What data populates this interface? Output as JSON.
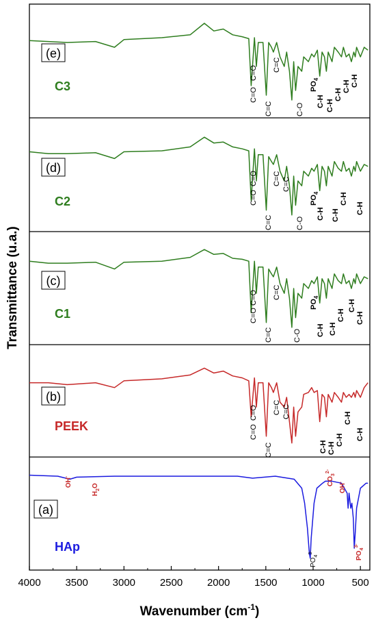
{
  "chart_data": {
    "type": "line",
    "xlabel": "Wavenumber (cm",
    "xlabel_sup": "-1",
    "xlabel_end": ")",
    "ylabel": "Transmittance (u.a.)",
    "xlim": [
      4000,
      400
    ],
    "x_reversed": true,
    "x_ticks": [
      "4000",
      "3500",
      "3000",
      "2500",
      "2000",
      "1500",
      "1000",
      "500"
    ],
    "x_tick_values": [
      4000,
      3500,
      3000,
      2500,
      2000,
      1500,
      1000,
      500
    ],
    "panels": [
      {
        "letter": "(e)",
        "name": "C3",
        "color": "#2e7d1e",
        "series": [
          [
            4000,
            0.28
          ],
          [
            3800,
            0.29
          ],
          [
            3600,
            0.3
          ],
          [
            3300,
            0.29
          ],
          [
            3100,
            0.35
          ],
          [
            3000,
            0.27
          ],
          [
            2600,
            0.25
          ],
          [
            2300,
            0.22
          ],
          [
            2150,
            0.1
          ],
          [
            2050,
            0.18
          ],
          [
            1950,
            0.16
          ],
          [
            1850,
            0.22
          ],
          [
            1750,
            0.24
          ],
          [
            1680,
            0.26
          ],
          [
            1655,
            0.75
          ],
          [
            1620,
            0.25
          ],
          [
            1600,
            0.55
          ],
          [
            1580,
            0.3
          ],
          [
            1530,
            0.3
          ],
          [
            1495,
            0.85
          ],
          [
            1470,
            0.3
          ],
          [
            1440,
            0.35
          ],
          [
            1420,
            0.4
          ],
          [
            1385,
            0.3
          ],
          [
            1350,
            0.45
          ],
          [
            1305,
            0.55
          ],
          [
            1280,
            0.4
          ],
          [
            1250,
            0.6
          ],
          [
            1225,
            0.9
          ],
          [
            1205,
            0.5
          ],
          [
            1185,
            0.8
          ],
          [
            1160,
            0.55
          ],
          [
            1120,
            0.6
          ],
          [
            1100,
            0.45
          ],
          [
            1050,
            0.5
          ],
          [
            1015,
            0.42
          ],
          [
            990,
            0.45
          ],
          [
            955,
            0.38
          ],
          [
            930,
            0.65
          ],
          [
            905,
            0.4
          ],
          [
            880,
            0.45
          ],
          [
            860,
            0.6
          ],
          [
            840,
            0.4
          ],
          [
            800,
            0.5
          ],
          [
            775,
            0.35
          ],
          [
            735,
            0.4
          ],
          [
            700,
            0.45
          ],
          [
            680,
            0.35
          ],
          [
            650,
            0.45
          ],
          [
            620,
            0.42
          ],
          [
            595,
            0.5
          ],
          [
            570,
            0.4
          ],
          [
            555,
            0.45
          ],
          [
            540,
            0.35
          ],
          [
            500,
            0.45
          ],
          [
            460,
            0.35
          ],
          [
            420,
            0.38
          ]
        ],
        "labels": [
          "C=O",
          "C=O",
          "C=C",
          "C=C",
          "C-O",
          "PO",
          "C-H",
          "C-H",
          "C-H",
          "C-H",
          "C-H"
        ]
      },
      {
        "letter": "(d)",
        "name": "C2",
        "color": "#2e7d1e",
        "series": [
          [
            4000,
            0.25
          ],
          [
            3800,
            0.27
          ],
          [
            3600,
            0.27
          ],
          [
            3300,
            0.26
          ],
          [
            3100,
            0.32
          ],
          [
            3000,
            0.25
          ],
          [
            2600,
            0.24
          ],
          [
            2300,
            0.2
          ],
          [
            2150,
            0.1
          ],
          [
            2050,
            0.16
          ],
          [
            1950,
            0.15
          ],
          [
            1850,
            0.2
          ],
          [
            1750,
            0.22
          ],
          [
            1680,
            0.24
          ],
          [
            1655,
            0.75
          ],
          [
            1620,
            0.22
          ],
          [
            1600,
            0.55
          ],
          [
            1580,
            0.28
          ],
          [
            1530,
            0.28
          ],
          [
            1495,
            0.85
          ],
          [
            1470,
            0.3
          ],
          [
            1440,
            0.35
          ],
          [
            1420,
            0.38
          ],
          [
            1385,
            0.28
          ],
          [
            1350,
            0.45
          ],
          [
            1305,
            0.55
          ],
          [
            1280,
            0.4
          ],
          [
            1250,
            0.6
          ],
          [
            1225,
            0.9
          ],
          [
            1205,
            0.5
          ],
          [
            1185,
            0.8
          ],
          [
            1160,
            0.55
          ],
          [
            1120,
            0.6
          ],
          [
            1100,
            0.45
          ],
          [
            1050,
            0.5
          ],
          [
            1015,
            0.42
          ],
          [
            990,
            0.45
          ],
          [
            955,
            0.38
          ],
          [
            930,
            0.65
          ],
          [
            905,
            0.4
          ],
          [
            880,
            0.45
          ],
          [
            860,
            0.6
          ],
          [
            840,
            0.4
          ],
          [
            800,
            0.5
          ],
          [
            775,
            0.35
          ],
          [
            735,
            0.42
          ],
          [
            700,
            0.45
          ],
          [
            680,
            0.35
          ],
          [
            650,
            0.45
          ],
          [
            620,
            0.42
          ],
          [
            595,
            0.5
          ],
          [
            570,
            0.4
          ],
          [
            555,
            0.45
          ],
          [
            540,
            0.35
          ],
          [
            500,
            0.45
          ],
          [
            460,
            0.38
          ],
          [
            420,
            0.4
          ]
        ],
        "labels": [
          "C=O",
          "C=O",
          "C=C",
          "C=C",
          "C=C",
          "C-O",
          "PO",
          "C-H",
          "C-H",
          "C-H",
          "C-H"
        ]
      },
      {
        "letter": "(c)",
        "name": "C1",
        "color": "#2e7d1e",
        "series": [
          [
            4000,
            0.22
          ],
          [
            3800,
            0.24
          ],
          [
            3600,
            0.24
          ],
          [
            3300,
            0.23
          ],
          [
            3100,
            0.3
          ],
          [
            3000,
            0.23
          ],
          [
            2600,
            0.22
          ],
          [
            2300,
            0.18
          ],
          [
            2150,
            0.1
          ],
          [
            2050,
            0.15
          ],
          [
            1950,
            0.14
          ],
          [
            1850,
            0.19
          ],
          [
            1750,
            0.2
          ],
          [
            1680,
            0.22
          ],
          [
            1655,
            0.75
          ],
          [
            1620,
            0.22
          ],
          [
            1600,
            0.55
          ],
          [
            1580,
            0.28
          ],
          [
            1530,
            0.28
          ],
          [
            1495,
            0.85
          ],
          [
            1470,
            0.3
          ],
          [
            1440,
            0.35
          ],
          [
            1420,
            0.38
          ],
          [
            1385,
            0.28
          ],
          [
            1350,
            0.45
          ],
          [
            1305,
            0.55
          ],
          [
            1280,
            0.4
          ],
          [
            1250,
            0.6
          ],
          [
            1225,
            0.9
          ],
          [
            1205,
            0.5
          ],
          [
            1185,
            0.8
          ],
          [
            1160,
            0.55
          ],
          [
            1120,
            0.6
          ],
          [
            1100,
            0.45
          ],
          [
            1050,
            0.5
          ],
          [
            1015,
            0.42
          ],
          [
            990,
            0.45
          ],
          [
            955,
            0.38
          ],
          [
            930,
            0.65
          ],
          [
            905,
            0.4
          ],
          [
            880,
            0.45
          ],
          [
            860,
            0.6
          ],
          [
            840,
            0.4
          ],
          [
            800,
            0.5
          ],
          [
            775,
            0.35
          ],
          [
            735,
            0.42
          ],
          [
            700,
            0.45
          ],
          [
            680,
            0.35
          ],
          [
            650,
            0.45
          ],
          [
            620,
            0.42
          ],
          [
            595,
            0.5
          ],
          [
            570,
            0.4
          ],
          [
            555,
            0.45
          ],
          [
            540,
            0.35
          ],
          [
            500,
            0.45
          ],
          [
            460,
            0.38
          ],
          [
            420,
            0.4
          ]
        ],
        "labels": [
          "C=O",
          "C=O",
          "C=C",
          "C=C",
          "C-O",
          "PO",
          "C-H",
          "C-H",
          "C-H",
          "C-H",
          "C-H"
        ]
      },
      {
        "letter": "(b)",
        "name": "PEEK",
        "color": "#c62828",
        "series": [
          [
            4000,
            0.3
          ],
          [
            3800,
            0.3
          ],
          [
            3600,
            0.32
          ],
          [
            3300,
            0.3
          ],
          [
            3100,
            0.35
          ],
          [
            3000,
            0.28
          ],
          [
            2600,
            0.26
          ],
          [
            2300,
            0.22
          ],
          [
            2150,
            0.15
          ],
          [
            2050,
            0.2
          ],
          [
            1950,
            0.18
          ],
          [
            1850,
            0.23
          ],
          [
            1750,
            0.25
          ],
          [
            1680,
            0.28
          ],
          [
            1655,
            0.65
          ],
          [
            1620,
            0.25
          ],
          [
            1600,
            0.55
          ],
          [
            1580,
            0.3
          ],
          [
            1530,
            0.3
          ],
          [
            1495,
            0.85
          ],
          [
            1470,
            0.3
          ],
          [
            1440,
            0.35
          ],
          [
            1420,
            0.4
          ],
          [
            1385,
            0.3
          ],
          [
            1350,
            0.5
          ],
          [
            1305,
            0.55
          ],
          [
            1280,
            0.45
          ],
          [
            1250,
            0.7
          ],
          [
            1225,
            0.92
          ],
          [
            1205,
            0.55
          ],
          [
            1185,
            0.85
          ],
          [
            1160,
            0.6
          ],
          [
            1120,
            0.55
          ],
          [
            1100,
            0.42
          ],
          [
            1050,
            0.4
          ],
          [
            1015,
            0.35
          ],
          [
            990,
            0.4
          ],
          [
            955,
            0.38
          ],
          [
            930,
            0.7
          ],
          [
            905,
            0.42
          ],
          [
            880,
            0.45
          ],
          [
            860,
            0.65
          ],
          [
            840,
            0.42
          ],
          [
            800,
            0.5
          ],
          [
            775,
            0.4
          ],
          [
            735,
            0.45
          ],
          [
            700,
            0.5
          ],
          [
            680,
            0.4
          ],
          [
            650,
            0.45
          ],
          [
            620,
            0.42
          ],
          [
            595,
            0.45
          ],
          [
            570,
            0.4
          ],
          [
            555,
            0.45
          ],
          [
            540,
            0.38
          ],
          [
            500,
            0.45
          ],
          [
            460,
            0.35
          ],
          [
            420,
            0.3
          ]
        ],
        "labels": [
          "C=O",
          "C=O",
          "C=C",
          "C=C",
          "C=C",
          "C-H",
          "C-H",
          "C-H",
          "C-H",
          "C-H"
        ]
      },
      {
        "letter": "(a)",
        "name": "HAp",
        "color": "#1a1adf",
        "series": [
          [
            4000,
            0.12
          ],
          [
            3700,
            0.13
          ],
          [
            3572,
            0.16
          ],
          [
            3500,
            0.14
          ],
          [
            3100,
            0.13
          ],
          [
            2800,
            0.13
          ],
          [
            2400,
            0.13
          ],
          [
            2000,
            0.13
          ],
          [
            1800,
            0.13
          ],
          [
            1640,
            0.15
          ],
          [
            1400,
            0.13
          ],
          [
            1200,
            0.16
          ],
          [
            1120,
            0.25
          ],
          [
            1090,
            0.4
          ],
          [
            1060,
            0.65
          ],
          [
            1040,
            0.9
          ],
          [
            1030,
            0.95
          ],
          [
            1020,
            0.75
          ],
          [
            990,
            0.4
          ],
          [
            960,
            0.25
          ],
          [
            900,
            0.2
          ],
          [
            870,
            0.18
          ],
          [
            800,
            0.18
          ],
          [
            700,
            0.2
          ],
          [
            640,
            0.3
          ],
          [
            630,
            0.45
          ],
          [
            620,
            0.3
          ],
          [
            602,
            0.45
          ],
          [
            590,
            0.4
          ],
          [
            575,
            0.55
          ],
          [
            565,
            0.85
          ],
          [
            555,
            0.7
          ],
          [
            540,
            0.45
          ],
          [
            500,
            0.25
          ],
          [
            440,
            0.2
          ],
          [
            420,
            0.2
          ]
        ],
        "labels": [
          "OH",
          "H",
          "O",
          "CO",
          "OH",
          "PO",
          "PO"
        ]
      }
    ]
  }
}
